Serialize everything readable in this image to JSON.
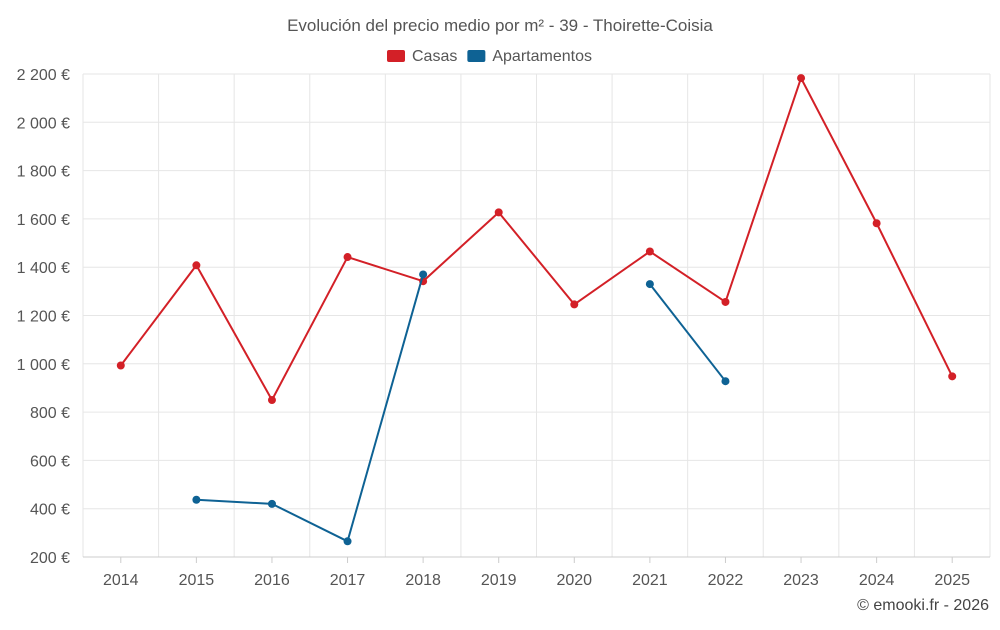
{
  "chart_data": {
    "type": "line",
    "title": "Evolución del precio medio por m² - 39 - Thoirette-Coisia",
    "x": [
      "2014",
      "2015",
      "2016",
      "2017",
      "2018",
      "2019",
      "2020",
      "2021",
      "2022",
      "2023",
      "2024",
      "2025"
    ],
    "ylim": [
      200,
      2200
    ],
    "yticks": [
      200,
      400,
      600,
      800,
      1000,
      1200,
      1400,
      1600,
      1800,
      2000,
      2200
    ],
    "ytick_labels": [
      "200 €",
      "400 €",
      "600 €",
      "800 €",
      "1 000 €",
      "1 200 €",
      "1 400 €",
      "1 600 €",
      "1 800 €",
      "2 000 €",
      "2 200 €"
    ],
    "series": [
      {
        "name": "Casas",
        "color": "#d32027",
        "values": [
          993,
          1408,
          850,
          1442,
          1342,
          1627,
          1246,
          1465,
          1256,
          2183,
          1582,
          948
        ]
      },
      {
        "name": "Apartamentos",
        "color": "#0e6294",
        "values": [
          null,
          437,
          420,
          265,
          1370,
          null,
          null,
          1330,
          928,
          null,
          null,
          null
        ]
      }
    ],
    "legend": "top-center",
    "grid": true
  },
  "credit": "© emooki.fr - 2026"
}
